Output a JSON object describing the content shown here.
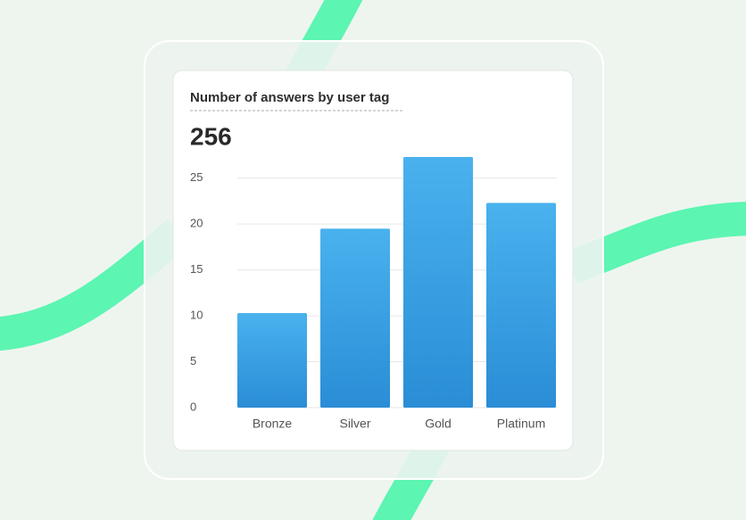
{
  "chart_data": {
    "type": "bar",
    "title": "Number of answers by user tag",
    "subtitle": "256",
    "categories": [
      "Bronze",
      "Silver",
      "Gold",
      "Platinum"
    ],
    "values": [
      10.3,
      19.5,
      27.3,
      22.3
    ],
    "color": "#3aa2e6",
    "ylim": [
      0,
      27.5
    ],
    "yticks": [
      0,
      5,
      10,
      15,
      20,
      25
    ],
    "grid": true
  }
}
